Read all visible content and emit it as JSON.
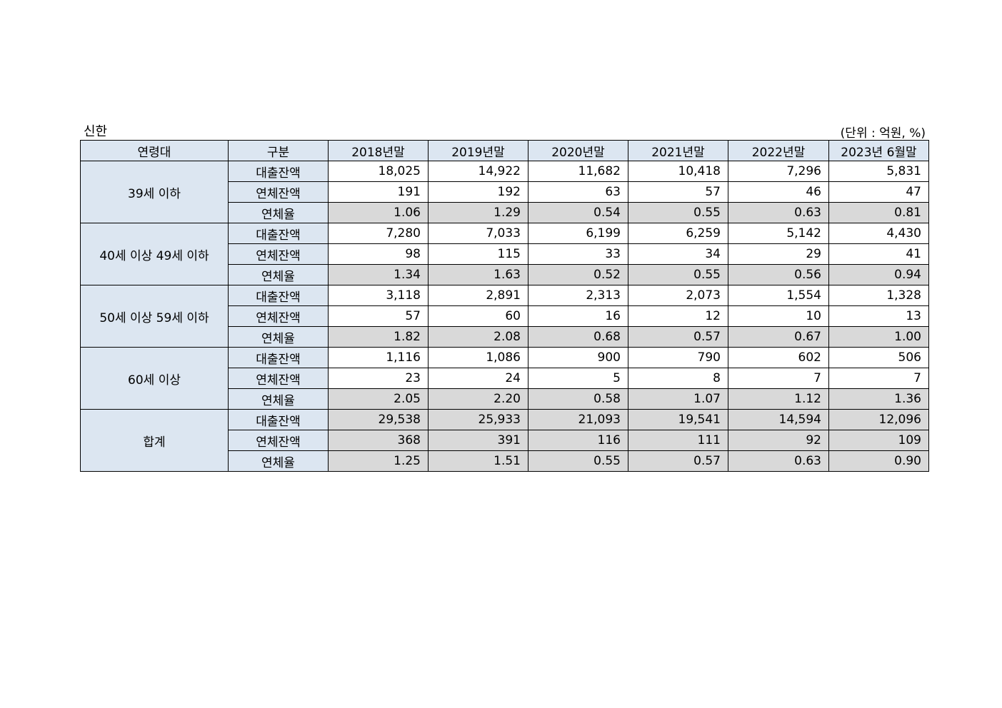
{
  "header": {
    "title": "신한",
    "unit": "(단위 : 억원, %)"
  },
  "table": {
    "columns": [
      "연령대",
      "구분",
      "2018년말",
      "2019년말",
      "2020년말",
      "2021년말",
      "2022년말",
      "2023년 6월말"
    ],
    "groups": [
      {
        "label": "39세 이하",
        "rows": [
          {
            "label": "대출잔액",
            "values": [
              "18,025",
              "14,922",
              "11,682",
              "10,418",
              "7,296",
              "5,831"
            ]
          },
          {
            "label": "연체잔액",
            "values": [
              "191",
              "192",
              "63",
              "57",
              "46",
              "47"
            ]
          },
          {
            "label": "연체율",
            "values": [
              "1.06",
              "1.29",
              "0.54",
              "0.55",
              "0.63",
              "0.81"
            ]
          }
        ]
      },
      {
        "label": "40세 이상 49세 이하",
        "rows": [
          {
            "label": "대출잔액",
            "values": [
              "7,280",
              "7,033",
              "6,199",
              "6,259",
              "5,142",
              "4,430"
            ]
          },
          {
            "label": "연체잔액",
            "values": [
              "98",
              "115",
              "33",
              "34",
              "29",
              "41"
            ]
          },
          {
            "label": "연체율",
            "values": [
              "1.34",
              "1.63",
              "0.52",
              "0.55",
              "0.56",
              "0.94"
            ]
          }
        ]
      },
      {
        "label": "50세 이상 59세 이하",
        "rows": [
          {
            "label": "대출잔액",
            "values": [
              "3,118",
              "2,891",
              "2,313",
              "2,073",
              "1,554",
              "1,328"
            ]
          },
          {
            "label": "연체잔액",
            "values": [
              "57",
              "60",
              "16",
              "12",
              "10",
              "13"
            ]
          },
          {
            "label": "연체율",
            "values": [
              "1.82",
              "2.08",
              "0.68",
              "0.57",
              "0.67",
              "1.00"
            ]
          }
        ]
      },
      {
        "label": "60세 이상",
        "rows": [
          {
            "label": "대출잔액",
            "values": [
              "1,116",
              "1,086",
              "900",
              "790",
              "602",
              "506"
            ]
          },
          {
            "label": "연체잔액",
            "values": [
              "23",
              "24",
              "5",
              "8",
              "7",
              "7"
            ]
          },
          {
            "label": "연체율",
            "values": [
              "2.05",
              "2.20",
              "0.58",
              "1.07",
              "1.12",
              "1.36"
            ]
          }
        ]
      },
      {
        "label": "합계",
        "rows": [
          {
            "label": "대출잔액",
            "values": [
              "29,538",
              "25,933",
              "21,093",
              "19,541",
              "14,594",
              "12,096"
            ]
          },
          {
            "label": "연체잔액",
            "values": [
              "368",
              "391",
              "116",
              "111",
              "92",
              "109"
            ]
          },
          {
            "label": "연체율",
            "values": [
              "1.25",
              "1.51",
              "0.55",
              "0.57",
              "0.63",
              "0.90"
            ]
          }
        ]
      }
    ]
  }
}
